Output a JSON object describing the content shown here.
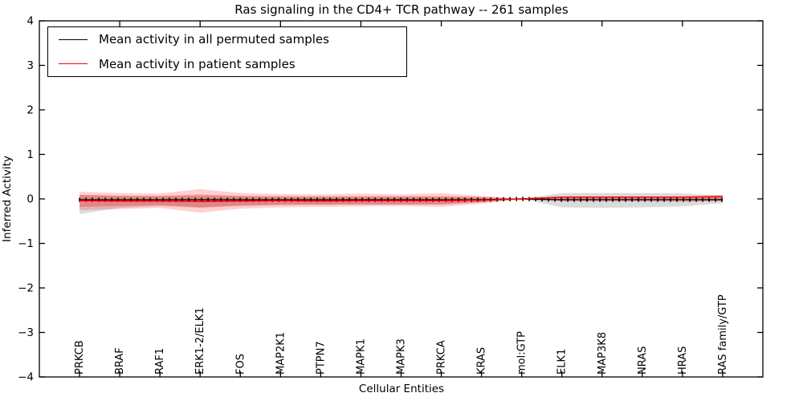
{
  "figure": {
    "title": "Ras signaling in the CD4+ TCR pathway -- 261 samples",
    "xlabel": "Cellular Entities",
    "ylabel": "Inferred Activity"
  },
  "legend": {
    "position": "upper left",
    "items": [
      {
        "label": "Mean activity in all permuted samples",
        "color": "#000000"
      },
      {
        "label": "Mean activity in patient samples",
        "color": "#ff0000"
      }
    ]
  },
  "chart_data": {
    "type": "line",
    "title": "Ras signaling in the CD4+ TCR pathway -- 261 samples",
    "xlabel": "Cellular Entities",
    "ylabel": "Inferred Activity",
    "xlim": [
      -1,
      17
    ],
    "ylim": [
      -4,
      4
    ],
    "ytick_step": 1,
    "grid": false,
    "frame_color": "#000000",
    "background": "#ffffff",
    "legend_position": "upper left",
    "marker": "vertical-tick",
    "categories": [
      "PRKCB",
      "BRAF",
      "RAF1",
      "ERK1-2/ELK1",
      "FOS",
      "MAP2K1",
      "PTPN7",
      "MAPK1",
      "MAPK3",
      "PRKCA",
      "KRAS",
      "mol:GTP",
      "ELK1",
      "MAP3K8",
      "NRAS",
      "HRAS",
      "RAS family/GTP"
    ],
    "series": [
      {
        "name": "Mean activity in all permuted samples",
        "color": "#000000",
        "values": [
          -0.02,
          -0.02,
          -0.02,
          -0.02,
          -0.02,
          -0.02,
          -0.02,
          -0.02,
          -0.02,
          -0.02,
          -0.02,
          0.0,
          -0.02,
          -0.02,
          -0.02,
          -0.02,
          -0.02
        ]
      },
      {
        "name": "Mean activity in patient samples",
        "color": "#ff0000",
        "values": [
          -0.04,
          -0.05,
          -0.05,
          -0.06,
          -0.05,
          -0.04,
          -0.05,
          -0.04,
          -0.04,
          -0.04,
          -0.03,
          0.0,
          0.04,
          0.04,
          0.04,
          0.04,
          0.05
        ]
      }
    ],
    "bands": [
      {
        "name": "permuted-std-band",
        "color": "#999999",
        "opacity": 0.35,
        "upper": [
          0.09,
          0.07,
          0.06,
          0.07,
          0.06,
          0.05,
          0.05,
          0.05,
          0.05,
          0.05,
          0.04,
          0.0,
          0.13,
          0.13,
          0.13,
          0.12,
          0.08
        ],
        "lower": [
          -0.34,
          -0.2,
          -0.16,
          -0.2,
          -0.16,
          -0.14,
          -0.13,
          -0.13,
          -0.13,
          -0.13,
          -0.08,
          0.0,
          -0.19,
          -0.2,
          -0.19,
          -0.17,
          -0.1
        ]
      },
      {
        "name": "patient-std-band-outer",
        "color": "#ff0000",
        "opacity": 0.18,
        "upper": [
          0.16,
          0.13,
          0.12,
          0.22,
          0.13,
          0.11,
          0.1,
          0.12,
          0.1,
          0.13,
          0.07,
          0.0,
          0.06,
          0.06,
          0.06,
          0.06,
          0.09
        ],
        "lower": [
          -0.25,
          -0.23,
          -0.2,
          -0.31,
          -0.22,
          -0.19,
          -0.18,
          -0.17,
          -0.16,
          -0.18,
          -0.11,
          0.0,
          -0.06,
          -0.06,
          -0.06,
          -0.07,
          -0.05
        ]
      },
      {
        "name": "patient-std-band-inner",
        "color": "#ff0000",
        "opacity": 0.26,
        "upper": [
          0.09,
          0.07,
          0.07,
          0.1,
          0.07,
          0.06,
          0.06,
          0.06,
          0.06,
          0.06,
          0.04,
          0.0,
          0.05,
          0.05,
          0.05,
          0.05,
          0.07
        ],
        "lower": [
          -0.18,
          -0.16,
          -0.14,
          -0.19,
          -0.15,
          -0.13,
          -0.13,
          -0.12,
          -0.12,
          -0.12,
          -0.07,
          0.0,
          -0.02,
          -0.02,
          -0.02,
          -0.03,
          -0.03
        ]
      }
    ]
  }
}
